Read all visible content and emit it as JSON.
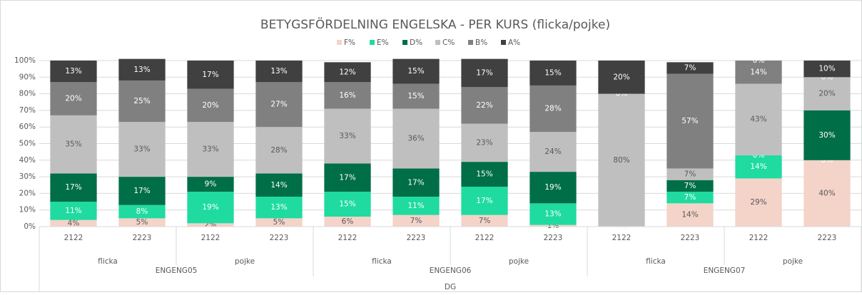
{
  "chart_data": {
    "type": "stacked_bar",
    "title": "BETYGSFÖRDELNING ENGELSKA - PER KURS (flicka/pojke)",
    "categories": [
      "2122",
      "2223",
      "2122",
      "2223",
      "2122",
      "2223",
      "2122",
      "2223",
      "2122",
      "2223",
      "2122",
      "2223"
    ],
    "subgroups": [
      "flicka",
      "pojke",
      "flicka",
      "pojke",
      "flicka",
      "pojke"
    ],
    "groups": [
      "ENGENG05",
      "ENGENG06",
      "ENGENG07"
    ],
    "supergroup": "DG",
    "ylim": [
      0,
      100
    ],
    "yticks": [
      {
        "value": 0,
        "label": "0%"
      },
      {
        "value": 10,
        "label": "10%"
      },
      {
        "value": 20,
        "label": "20%"
      },
      {
        "value": 30,
        "label": "30%"
      },
      {
        "value": 40,
        "label": "40%"
      },
      {
        "value": 50,
        "label": "50%"
      },
      {
        "value": 60,
        "label": "60%"
      },
      {
        "value": 70,
        "label": "70%"
      },
      {
        "value": 80,
        "label": "80%"
      },
      {
        "value": 90,
        "label": "90%"
      },
      {
        "value": 100,
        "label": "100%"
      }
    ],
    "grid": true,
    "legend": "top",
    "series": [
      {
        "name": "F%",
        "color": "#f4d3c9",
        "label_color": "#595959",
        "values": [
          4,
          5,
          2,
          5,
          6,
          7,
          7,
          1,
          0,
          14,
          29,
          40
        ],
        "value_labels": [
          "4%",
          "5%",
          "2%",
          "5%",
          "6%",
          "7%",
          "7%",
          "1%",
          "0%",
          "14%",
          "29%",
          "40%"
        ]
      },
      {
        "name": "E%",
        "color": "#1fdba0",
        "label_color": "#ffffff",
        "values": [
          11,
          8,
          19,
          13,
          15,
          11,
          17,
          13,
          0,
          7,
          14,
          0
        ],
        "value_labels": [
          "11%",
          "8%",
          "19%",
          "13%",
          "15%",
          "11%",
          "17%",
          "13%",
          "0%",
          "7%",
          "14%",
          "0%"
        ]
      },
      {
        "name": "D%",
        "color": "#006e47",
        "label_color": "#ffffff",
        "values": [
          17,
          17,
          9,
          14,
          17,
          17,
          15,
          19,
          0,
          7,
          0,
          30
        ],
        "value_labels": [
          "17%",
          "17%",
          "9%",
          "14%",
          "17%",
          "17%",
          "15%",
          "19%",
          "0%",
          "7%",
          "0%",
          "30%"
        ]
      },
      {
        "name": "C%",
        "color": "#bfbfbf",
        "label_color": "#595959",
        "values": [
          35,
          33,
          33,
          28,
          33,
          36,
          23,
          24,
          80,
          7,
          43,
          20
        ],
        "value_labels": [
          "35%",
          "33%",
          "33%",
          "28%",
          "33%",
          "36%",
          "23%",
          "24%",
          "80%",
          "7%",
          "43%",
          "20%"
        ]
      },
      {
        "name": "B%",
        "color": "#808080",
        "label_color": "#ffffff",
        "values": [
          20,
          25,
          20,
          27,
          16,
          15,
          22,
          28,
          0,
          57,
          14,
          0
        ],
        "value_labels": [
          "20%",
          "25%",
          "20%",
          "27%",
          "16%",
          "15%",
          "22%",
          "28%",
          "0%",
          "57%",
          "14%",
          "0%"
        ]
      },
      {
        "name": "A%",
        "color": "#404040",
        "label_color": "#ffffff",
        "values": [
          13,
          13,
          17,
          13,
          12,
          15,
          17,
          15,
          20,
          7,
          0,
          10
        ],
        "value_labels": [
          "13%",
          "13%",
          "17%",
          "13%",
          "12%",
          "15%",
          "17%",
          "15%",
          "20%",
          "7%",
          "0%",
          "10%"
        ]
      }
    ]
  }
}
